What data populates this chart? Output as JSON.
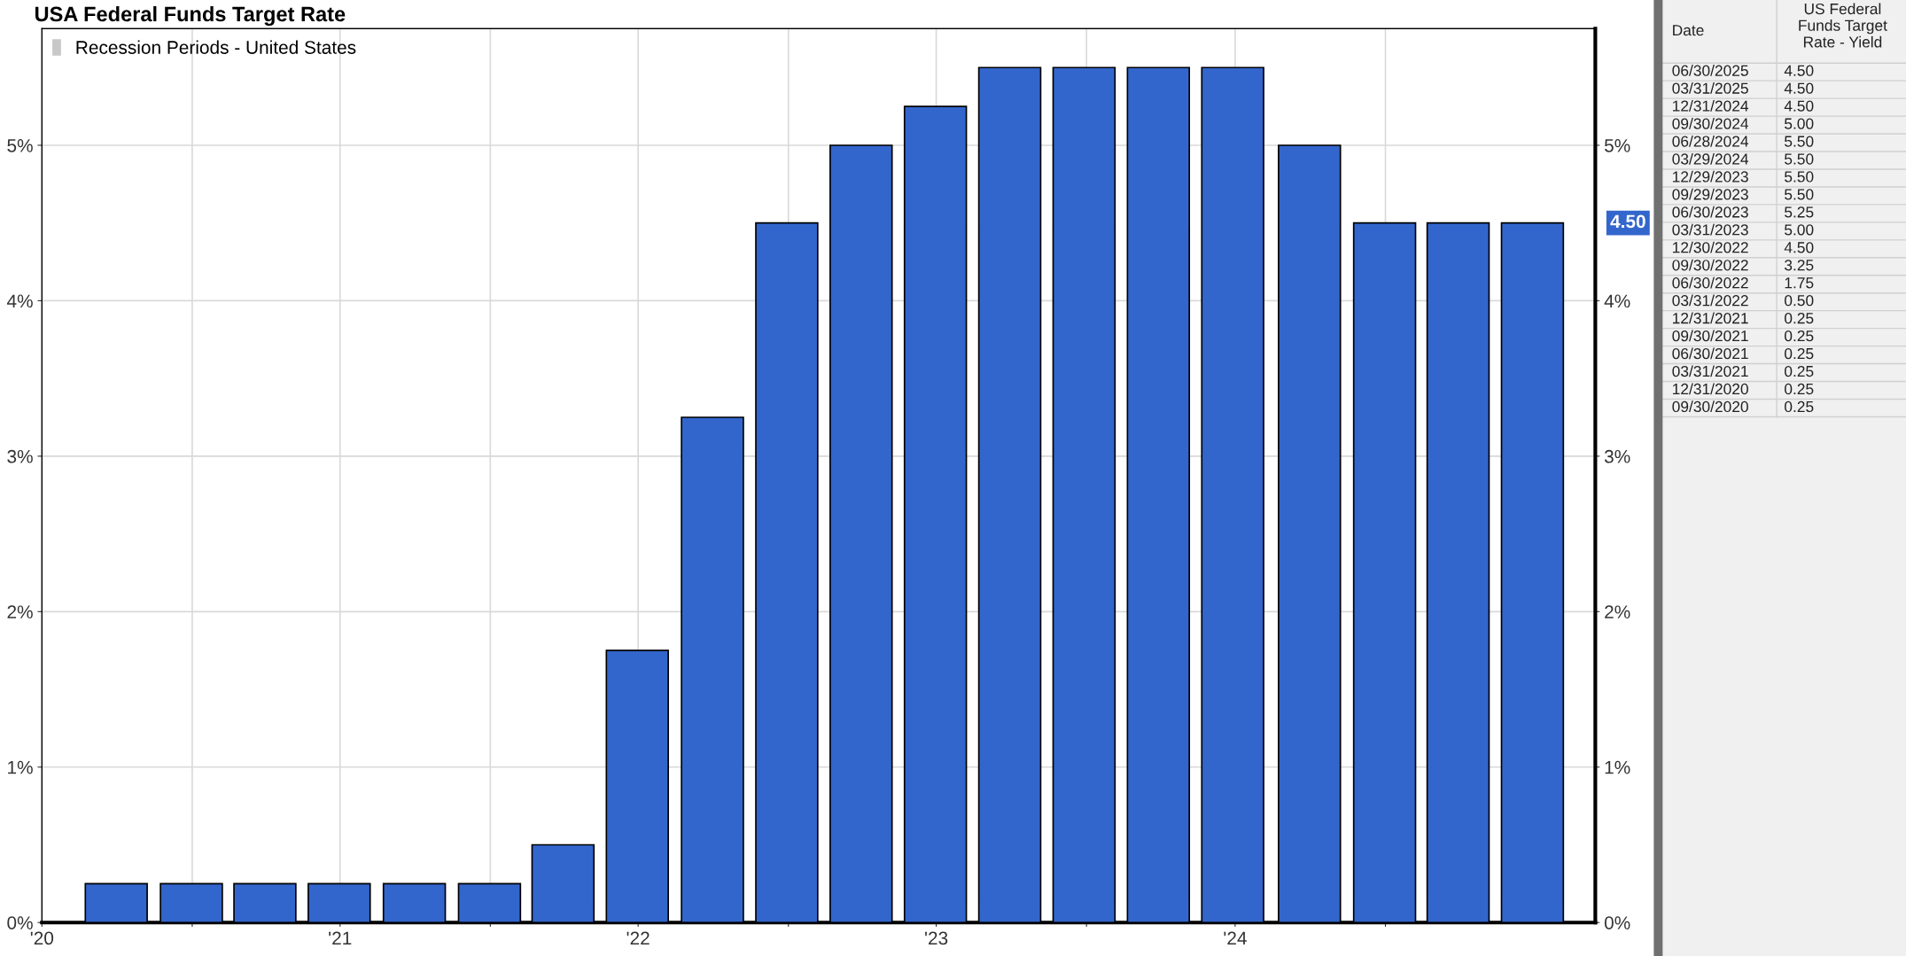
{
  "chart_data": [
    {
      "type": "bar",
      "title": "USA Federal Funds Target Rate",
      "x": [
        "2020-09-30",
        "2020-12-31",
        "2021-03-31",
        "2021-06-30",
        "2021-09-30",
        "2021-12-31",
        "2022-03-31",
        "2022-06-30",
        "2022-09-30",
        "2022-12-30",
        "2023-03-31",
        "2023-06-30",
        "2023-09-29",
        "2023-12-29",
        "2024-03-29",
        "2024-06-28",
        "2024-09-30",
        "2024-12-31",
        "2025-03-31",
        "2025-06-30"
      ],
      "series": [
        {
          "color": "#3366cc",
          "values": [
            0.25,
            0.25,
            0.25,
            0.25,
            0.25,
            0.25,
            0.5,
            1.75,
            3.25,
            4.5,
            5.0,
            5.25,
            5.5,
            5.5,
            5.5,
            5.5,
            5.0,
            4.5,
            4.5,
            4.5
          ]
        },
        {
          "name": "Recession Periods - United States",
          "color": "#c8c8c8",
          "values": [
            null,
            null,
            null,
            null,
            null,
            null,
            null,
            null,
            null,
            null,
            null,
            null,
            null,
            null,
            null,
            null,
            null,
            null,
            null,
            null
          ]
        }
      ],
      "xlim": [
        "2020-07-01",
        "2025-09-15"
      ],
      "xticks": [
        {
          "value": "2020-07-01",
          "label": "'20"
        },
        {
          "value": "2021-01-01",
          "label": null
        },
        {
          "value": "2021-07-01",
          "label": "'21"
        },
        {
          "value": "2022-01-01",
          "label": null
        },
        {
          "value": "2022-07-01",
          "label": "'22"
        },
        {
          "value": "2023-01-01",
          "label": null
        },
        {
          "value": "2023-07-01",
          "label": "'23"
        },
        {
          "value": "2024-01-01",
          "label": null
        },
        {
          "value": "2024-07-01",
          "label": "'24"
        },
        {
          "value": "2025-01-01",
          "label": null
        }
      ],
      "ylim": [
        0,
        5.75
      ],
      "yticks": [
        {
          "value": 0,
          "label": "0%"
        },
        {
          "value": 1,
          "label": "1%"
        },
        {
          "value": 2,
          "label": "2%"
        },
        {
          "value": 3,
          "label": "3%"
        },
        {
          "value": 4,
          "label": "4%"
        },
        {
          "value": 5,
          "label": "5%"
        }
      ],
      "y2lim": [
        0,
        5.75
      ],
      "y2ticks": [
        {
          "value": 0,
          "label": "0%"
        },
        {
          "value": 1,
          "label": "1%"
        },
        {
          "value": 2,
          "label": "2%"
        },
        {
          "value": 3,
          "label": "3%"
        },
        {
          "value": 4,
          "label": "4%"
        },
        {
          "value": 5,
          "label": "5%"
        }
      ],
      "grid": true,
      "legend": "top left",
      "annotations": [
        "4.50"
      ]
    },
    {
      "type": "other",
      "annotations": [
        "Date",
        "US Federal\nFunds Target\nRate - Yield"
      ],
      "categories": [
        "06/30/2025",
        "03/31/2025",
        "12/31/2024",
        "09/30/2024",
        "06/28/2024",
        "03/29/2024",
        "12/29/2023",
        "09/29/2023",
        "06/30/2023",
        "03/31/2023",
        "12/30/2022",
        "09/30/2022",
        "06/30/2022",
        "03/31/2022",
        "12/31/2021",
        "09/30/2021",
        "06/30/2021",
        "03/31/2021",
        "12/31/2020",
        "09/30/2020"
      ],
      "value_labels": [
        "4.50",
        "4.50",
        "4.50",
        "5.00",
        "5.50",
        "5.50",
        "5.50",
        "5.50",
        "5.25",
        "5.00",
        "4.50",
        "3.25",
        "1.75",
        "0.50",
        "0.25",
        "0.25",
        "0.25",
        "0.25",
        "0.25",
        "0.25"
      ]
    }
  ]
}
